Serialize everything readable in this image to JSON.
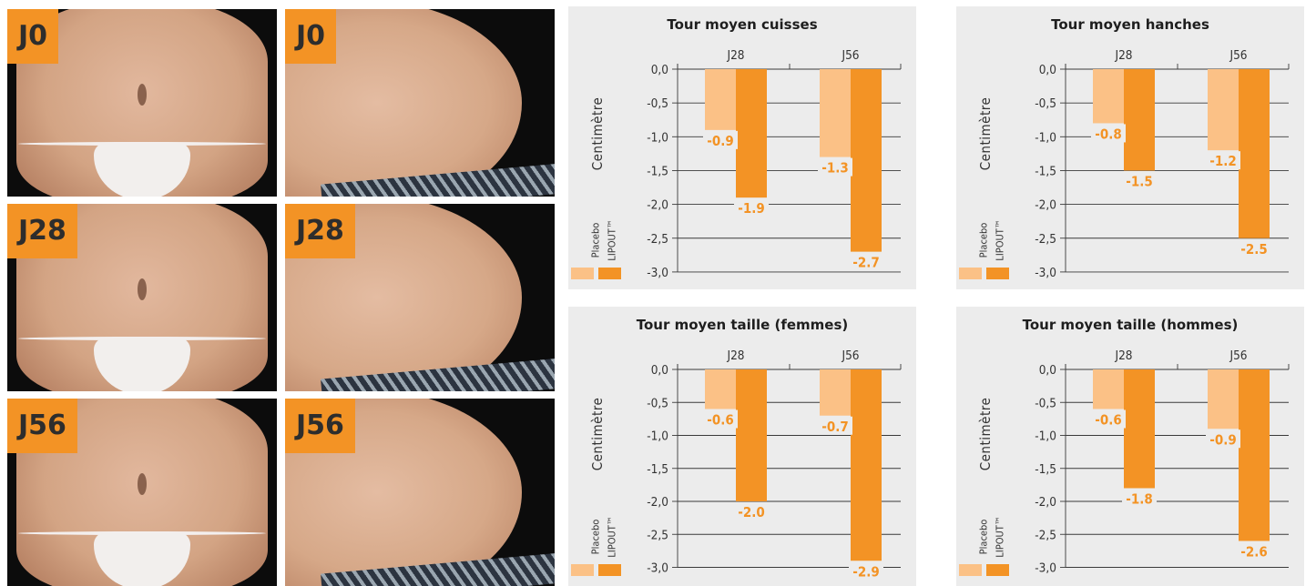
{
  "photos": {
    "labels": [
      "J0",
      "J0",
      "J28",
      "J28",
      "J56",
      "J56"
    ]
  },
  "colors": {
    "placebo": "#fbc186",
    "lipout": "#f39325",
    "panel": "#ececec",
    "label": "#f39325"
  },
  "legend": {
    "placebo": "Placebo",
    "lipout": "LIPOUT™"
  },
  "y_axis_label": "Centimètre",
  "chart_data": [
    {
      "type": "bar",
      "title": "Tour moyen cuisses",
      "categories": [
        "J28",
        "J56"
      ],
      "series": [
        {
          "name": "Placebo",
          "values": [
            -0.9,
            -1.3
          ],
          "labels": [
            "-0.9",
            "-1.3"
          ]
        },
        {
          "name": "LIPOUT™",
          "values": [
            -1.9,
            -2.7
          ],
          "labels": [
            "-1.9",
            "-2.7"
          ]
        }
      ],
      "ylim": [
        -3.0,
        0.0
      ],
      "yticks": [
        "0,0",
        "-0,5",
        "-1,0",
        "-1,5",
        "-2,0",
        "-2,5",
        "-3,0"
      ],
      "ylabel": "Centimètre"
    },
    {
      "type": "bar",
      "title": "Tour moyen hanches",
      "categories": [
        "J28",
        "J56"
      ],
      "series": [
        {
          "name": "Placebo",
          "values": [
            -0.8,
            -1.2
          ],
          "labels": [
            "-0.8",
            "-1.2"
          ]
        },
        {
          "name": "LIPOUT™",
          "values": [
            -1.5,
            -2.5
          ],
          "labels": [
            "-1.5",
            "-2.5"
          ]
        }
      ],
      "ylim": [
        -3.0,
        0.0
      ],
      "yticks": [
        "0,0",
        "-0,5",
        "-1,0",
        "-1,5",
        "-2,0",
        "-2,5",
        "-3,0"
      ],
      "ylabel": "Centimètre"
    },
    {
      "type": "bar",
      "title": "Tour moyen taille (femmes)",
      "categories": [
        "J28",
        "J56"
      ],
      "series": [
        {
          "name": "Placebo",
          "values": [
            -0.6,
            -0.7
          ],
          "labels": [
            "-0.6",
            "-0.7"
          ]
        },
        {
          "name": "LIPOUT™",
          "values": [
            -2.0,
            -2.9
          ],
          "labels": [
            "-2.0",
            "-2.9"
          ]
        }
      ],
      "ylim": [
        -3.0,
        0.0
      ],
      "yticks": [
        "0,0",
        "-0,5",
        "-1,0",
        "-1,5",
        "-2,0",
        "-2,5",
        "-3,0"
      ],
      "ylabel": "Centimètre"
    },
    {
      "type": "bar",
      "title": "Tour moyen taille (hommes)",
      "categories": [
        "J28",
        "J56"
      ],
      "series": [
        {
          "name": "Placebo",
          "values": [
            -0.6,
            -0.9
          ],
          "labels": [
            "-0.6",
            "-0.9"
          ]
        },
        {
          "name": "LIPOUT™",
          "values": [
            -1.8,
            -2.6
          ],
          "labels": [
            "-1.8",
            "-2.6"
          ]
        }
      ],
      "ylim": [
        -3.0,
        0.0
      ],
      "yticks": [
        "0,0",
        "-0,5",
        "-1,0",
        "-1,5",
        "-2,0",
        "-2,5",
        "-3,0"
      ],
      "ylabel": "Centimètre"
    }
  ]
}
